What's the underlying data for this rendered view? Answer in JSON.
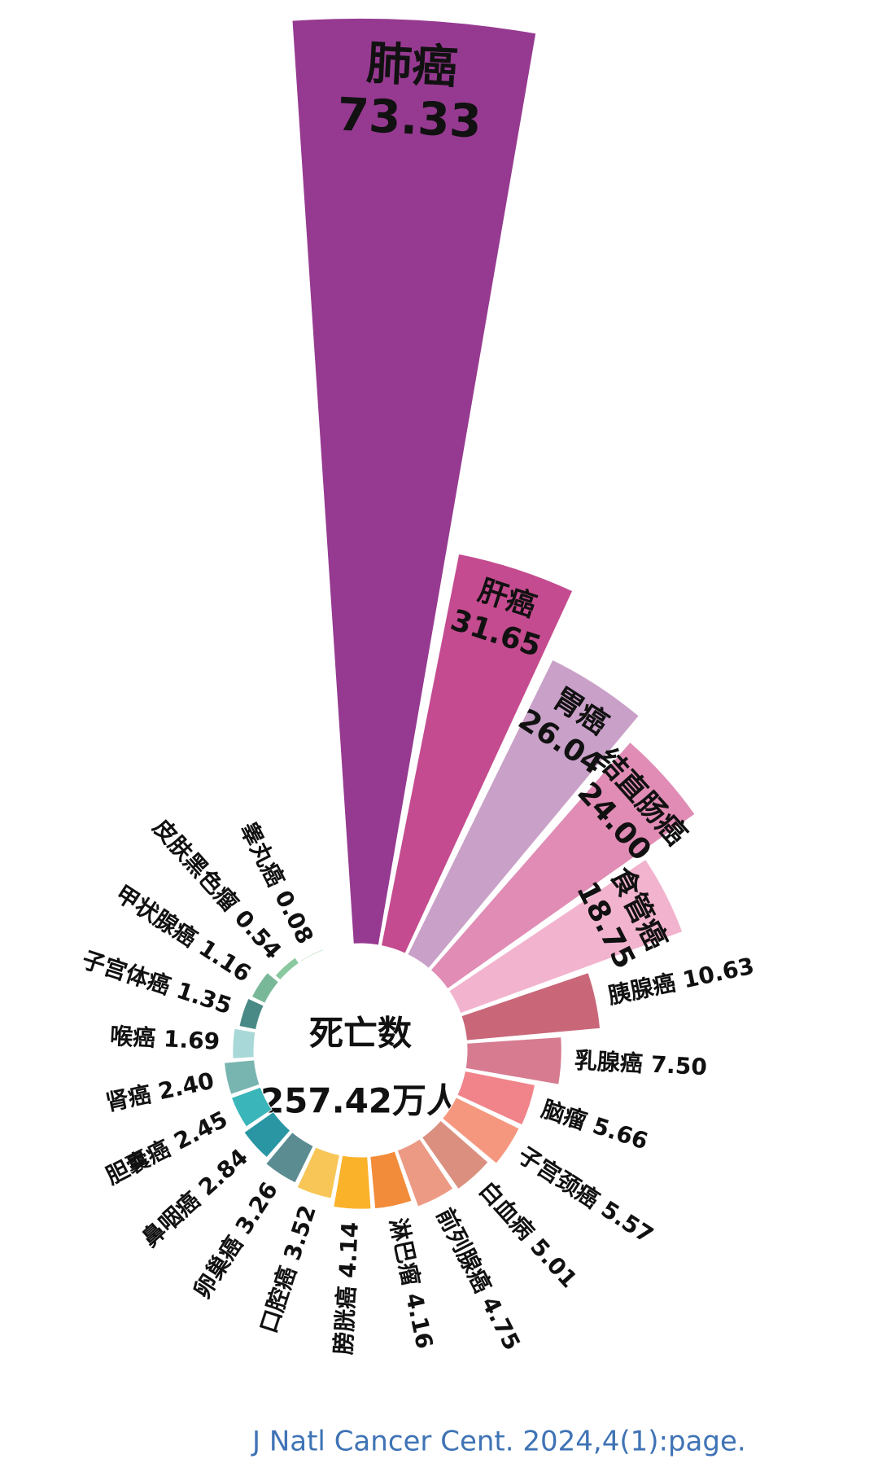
{
  "chart_data": {
    "type": "radial-bar",
    "center_title": "死亡数",
    "center_total": "257.42万人",
    "source": "J Natl Cancer Cent. 2024,4(1):page.",
    "categories": [
      "肺癌",
      "肝癌",
      "胃癌",
      "结直肠癌",
      "食管癌",
      "胰腺癌",
      "乳腺癌",
      "脑瘤",
      "子宫颈癌",
      "白血病",
      "前列腺癌",
      "淋巴瘤",
      "膀胱癌",
      "口腔癌",
      "卵巢癌",
      "鼻咽癌",
      "胆囊癌",
      "肾癌",
      "喉癌",
      "子宫体癌",
      "甲状腺癌",
      "皮肤黑色瘤",
      "睾丸癌"
    ],
    "values": [
      73.33,
      31.65,
      26.04,
      24,
      18.75,
      10.63,
      7.5,
      5.66,
      5.57,
      5.01,
      4.75,
      4.16,
      4.14,
      3.52,
      3.26,
      2.84,
      2.45,
      2.4,
      1.69,
      1.35,
      1.16,
      0.54,
      0.08
    ],
    "value_labels": [
      "73.33",
      "31.65",
      "26.04",
      "24.00",
      "18.75",
      "10.63",
      "7.50",
      "5.66",
      "5.57",
      "5.01",
      "4.75",
      "4.16",
      "4.14",
      "3.52",
      "3.26",
      "2.84",
      "2.45",
      "2.40",
      "1.69",
      "1.35",
      "1.16",
      "0.54",
      "0.08"
    ],
    "colors": [
      "#963a91",
      "#c44b8f",
      "#c9a0c8",
      "#e08cb5",
      "#f2b3ce",
      "#c96779",
      "#d67b90",
      "#f0848a",
      "#f5977e",
      "#db907f",
      "#ec9a84",
      "#f28c3a",
      "#fbb22b",
      "#f8c657",
      "#5a8c92",
      "#2a96a4",
      "#3ab5b9",
      "#78b5b0",
      "#a8d8d8",
      "#4a8a86",
      "#78b898",
      "#8ac8a0",
      "#5cb85c"
    ]
  }
}
